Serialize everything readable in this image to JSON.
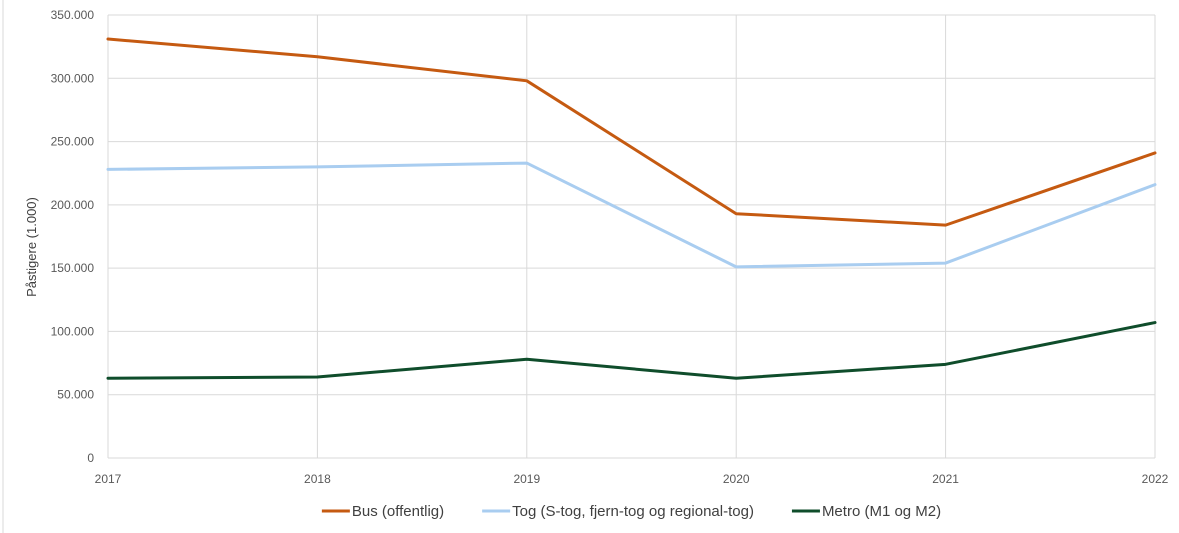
{
  "chart_data": {
    "type": "line",
    "title": "",
    "xlabel": "",
    "ylabel": "Påstigere (1.000)",
    "x": [
      "2017",
      "2018",
      "2019",
      "2020",
      "2021",
      "2022"
    ],
    "ylim": [
      0,
      350000
    ],
    "yticks": [
      0,
      50000,
      100000,
      150000,
      200000,
      250000,
      300000,
      350000
    ],
    "ytick_labels": [
      "0",
      "50.000",
      "100.000",
      "150.000",
      "200.000",
      "250.000",
      "300.000",
      "350.000"
    ],
    "grid": true,
    "legend_position": "bottom",
    "series": [
      {
        "name": "Bus (offentlig)",
        "color": "#c55a11",
        "values": [
          331000,
          317000,
          298000,
          193000,
          184000,
          241000
        ]
      },
      {
        "name": "Tog (S-tog, fjern-tog og regional-tog)",
        "color": "#a9cdf0",
        "values": [
          228000,
          230000,
          233000,
          151000,
          154000,
          216000
        ]
      },
      {
        "name": "Metro (M1 og M2)",
        "color": "#0f4d2b",
        "values": [
          63000,
          64000,
          78000,
          63000,
          74000,
          107000
        ]
      }
    ]
  }
}
